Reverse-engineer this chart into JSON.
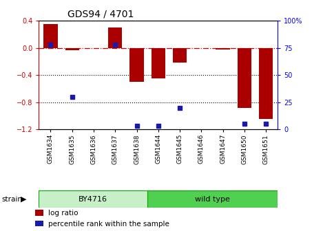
{
  "title": "GDS94 / 4701",
  "samples": [
    "GSM1634",
    "GSM1635",
    "GSM1636",
    "GSM1637",
    "GSM1638",
    "GSM1644",
    "GSM1645",
    "GSM1646",
    "GSM1647",
    "GSM1650",
    "GSM1651"
  ],
  "log_ratios": [
    0.35,
    -0.03,
    0.0,
    0.3,
    -0.5,
    -0.45,
    -0.22,
    0.0,
    -0.02,
    -0.88,
    -1.05
  ],
  "percentile_ranks": [
    78,
    30,
    null,
    78,
    3,
    3,
    20,
    null,
    null,
    5,
    5
  ],
  "groups": [
    {
      "label": "BY4716",
      "start": 0,
      "end": 5
    },
    {
      "label": "wild type",
      "start": 5,
      "end": 11
    }
  ],
  "bar_color": "#aa0000",
  "dot_color": "#1a1aaa",
  "ylim": [
    -1.2,
    0.4
  ],
  "y2lim": [
    0,
    100
  ],
  "y_ticks": [
    -1.2,
    -0.8,
    -0.4,
    0.0,
    0.4
  ],
  "y2_ticks": [
    0,
    25,
    50,
    75,
    100
  ],
  "y2_tick_labels": [
    "0",
    "25",
    "50",
    "75",
    "100%"
  ],
  "hline_y": 0.0,
  "dotted_lines": [
    -0.4,
    -0.8
  ],
  "strain_label": "strain",
  "legend_items": [
    {
      "label": "log ratio",
      "color": "#aa0000"
    },
    {
      "label": "percentile rank within the sample",
      "color": "#1a1aaa"
    }
  ],
  "group_colors": [
    "#c8f0c8",
    "#50d050"
  ],
  "group_edge_color": "#00aa00"
}
